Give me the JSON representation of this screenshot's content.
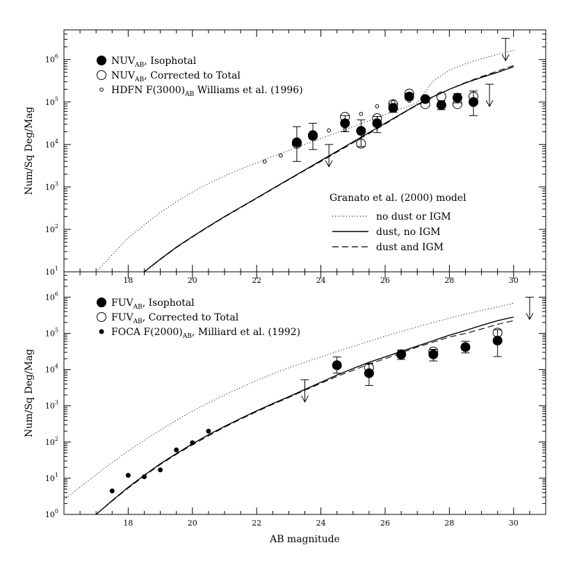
{
  "chart_data": {
    "type": "scatter",
    "xlabel": "AB magnitude",
    "ylabel": "Num/Sq Deg/Mag",
    "xlim": [
      16,
      31
    ],
    "x_ticks": [
      18,
      20,
      22,
      24,
      26,
      28,
      30
    ],
    "y_tick_labels": [
      "10^0",
      "10^1",
      "10^2",
      "10^3",
      "10^4",
      "10^5",
      "10^6"
    ],
    "panels": [
      {
        "id": "nuv",
        "ylim_log10": [
          1.0,
          6.7
        ],
        "legend": [
          {
            "symbol": "filled-circle",
            "base": "NUV",
            "sub": "AB",
            "text": ", Isophotal"
          },
          {
            "symbol": "open-circle",
            "base": "NUV",
            "sub": "AB",
            "text": ", Corrected to Total"
          },
          {
            "symbol": "small-open-circle",
            "base": "HDFN F(3000)",
            "sub": "AB",
            "text": " Williams et al. (1996)"
          }
        ],
        "model_legend_title": "Granato et al. (2000) model",
        "model_legend": [
          {
            "style": "dotted",
            "label": "no dust or IGM"
          },
          {
            "style": "solid",
            "label": "dust, no IGM"
          },
          {
            "style": "dashed",
            "label": "dust and IGM"
          }
        ],
        "models": {
          "dotted": {
            "x": [
              17.0,
              17.5,
              18.0,
              18.5,
              19.0,
              19.5,
              20.0,
              20.5,
              21.0,
              21.5,
              22.0,
              22.5,
              23.0,
              23.5,
              24.0,
              24.5,
              25.0,
              25.5,
              26.0,
              26.5,
              27.0,
              27.5,
              28.0,
              28.5,
              29.0,
              29.5,
              30.0
            ],
            "y_log10": [
              1.0,
              1.4,
              1.8,
              2.1,
              2.4,
              2.65,
              2.88,
              3.08,
              3.26,
              3.42,
              3.57,
              3.72,
              3.86,
              4.0,
              4.14,
              4.28,
              4.42,
              4.56,
              4.7,
              4.84,
              4.98,
              5.5,
              5.75,
              5.9,
              6.02,
              6.12,
              6.22
            ]
          },
          "solid": {
            "x": [
              18.5,
              19.0,
              19.5,
              20.0,
              20.5,
              21.0,
              21.5,
              22.0,
              22.5,
              23.0,
              23.5,
              24.0,
              24.5,
              25.0,
              25.5,
              26.0,
              26.5,
              27.0,
              27.5,
              28.0,
              28.5,
              29.0,
              29.5,
              30.0
            ],
            "y_log10": [
              1.0,
              1.3,
              1.58,
              1.83,
              2.07,
              2.3,
              2.52,
              2.74,
              2.96,
              3.18,
              3.4,
              3.62,
              3.84,
              4.06,
              4.28,
              4.5,
              4.72,
              4.94,
              5.13,
              5.3,
              5.45,
              5.58,
              5.7,
              5.83
            ]
          },
          "dashed": {
            "x": [
              18.5,
              19.0,
              19.5,
              20.0,
              20.5,
              21.0,
              21.5,
              22.0,
              22.5,
              23.0,
              23.5,
              24.0,
              24.5,
              25.0,
              25.5,
              26.0,
              26.5,
              27.0,
              27.5,
              28.0,
              28.5,
              29.0,
              29.5,
              30.0
            ],
            "y_log10": [
              1.0,
              1.29,
              1.57,
              1.82,
              2.06,
              2.29,
              2.51,
              2.73,
              2.95,
              3.17,
              3.39,
              3.6,
              3.82,
              4.04,
              4.26,
              4.48,
              4.71,
              4.93,
              5.12,
              5.3,
              5.46,
              5.6,
              5.73,
              5.86
            ]
          }
        },
        "isophotal": [
          {
            "x": 23.25,
            "y_log10": 4.05,
            "err_lo": 3.6,
            "err_hi": 4.42
          },
          {
            "x": 23.75,
            "y_log10": 4.22,
            "err_lo": 3.88,
            "err_hi": 4.5
          },
          {
            "x": 24.75,
            "y_log10": 4.5,
            "err_lo": 4.3,
            "err_hi": 4.68
          },
          {
            "x": 25.25,
            "y_log10": 4.32,
            "err_lo": 3.95,
            "err_hi": 4.58
          },
          {
            "x": 25.75,
            "y_log10": 4.5,
            "err_lo": 4.28,
            "err_hi": 4.66
          },
          {
            "x": 26.25,
            "y_log10": 4.86,
            "err_lo": 4.76,
            "err_hi": 4.96
          },
          {
            "x": 26.75,
            "y_log10": 5.13,
            "err_lo": 5.05,
            "err_hi": 5.2
          },
          {
            "x": 27.25,
            "y_log10": 5.07,
            "err_lo": 5.0,
            "err_hi": 5.14
          },
          {
            "x": 27.75,
            "y_log10": 4.93,
            "err_lo": 4.82,
            "err_hi": 5.03
          },
          {
            "x": 28.25,
            "y_log10": 5.1,
            "err_lo": 4.98,
            "err_hi": 5.2
          },
          {
            "x": 28.75,
            "y_log10": 5.0,
            "err_lo": 4.68,
            "err_hi": 5.26
          }
        ],
        "corrected": [
          {
            "x": 23.25,
            "y_log10": 4.02
          },
          {
            "x": 23.75,
            "y_log10": 4.2
          },
          {
            "x": 24.75,
            "y_log10": 4.65
          },
          {
            "x": 25.25,
            "y_log10": 4.02
          },
          {
            "x": 25.75,
            "y_log10": 4.62
          },
          {
            "x": 26.25,
            "y_log10": 4.95
          },
          {
            "x": 26.75,
            "y_log10": 5.2
          },
          {
            "x": 27.25,
            "y_log10": 4.95
          },
          {
            "x": 27.75,
            "y_log10": 5.13
          },
          {
            "x": 28.25,
            "y_log10": 4.95
          },
          {
            "x": 28.75,
            "y_log10": 5.13
          }
        ],
        "hdfn": [
          {
            "x": 22.25,
            "y_log10": 3.6
          },
          {
            "x": 22.75,
            "y_log10": 3.74
          },
          {
            "x": 23.25,
            "y_log10": 4.02
          },
          {
            "x": 23.75,
            "y_log10": 4.26
          },
          {
            "x": 24.25,
            "y_log10": 4.33
          },
          {
            "x": 24.75,
            "y_log10": 4.35
          },
          {
            "x": 25.25,
            "y_log10": 4.72
          },
          {
            "x": 25.75,
            "y_log10": 4.9
          },
          {
            "x": 26.25,
            "y_log10": 5.0
          },
          {
            "x": 26.75,
            "y_log10": 5.03
          },
          {
            "x": 27.25,
            "y_log10": 5.05
          }
        ],
        "upper_limits": [
          {
            "x": 24.25,
            "y_log10": 4.0
          },
          {
            "x": 29.25,
            "y_log10": 5.42
          },
          {
            "x": 29.75,
            "y_log10": 6.5
          }
        ]
      },
      {
        "id": "fuv",
        "ylim_log10": [
          0.0,
          6.7
        ],
        "legend": [
          {
            "symbol": "filled-circle",
            "base": "FUV",
            "sub": "AB",
            "text": ", Isophotal"
          },
          {
            "symbol": "open-circle",
            "base": "FUV",
            "sub": "AB",
            "text": ", Corrected to Total"
          },
          {
            "symbol": "small-filled-circle",
            "base": "FOCA F(2000)",
            "sub": "AB",
            "text": ", Milliard et al. (1992)"
          }
        ],
        "models": {
          "dotted": {
            "x": [
              16.0,
              16.5,
              17.0,
              17.5,
              18.0,
              18.5,
              19.0,
              19.5,
              20.0,
              20.5,
              21.0,
              21.5,
              22.0,
              22.5,
              23.0,
              23.5,
              24.0,
              24.5,
              25.0,
              25.5,
              26.0,
              26.5,
              27.0,
              27.5,
              28.0,
              28.5,
              29.0,
              29.5,
              30.0
            ],
            "y_log10": [
              0.4,
              0.75,
              1.1,
              1.43,
              1.75,
              2.05,
              2.33,
              2.6,
              2.85,
              3.08,
              3.3,
              3.5,
              3.7,
              3.88,
              4.05,
              4.2,
              4.35,
              4.5,
              4.64,
              4.78,
              4.92,
              5.05,
              5.18,
              5.3,
              5.42,
              5.53,
              5.63,
              5.73,
              5.83
            ]
          },
          "solid": {
            "x": [
              17.0,
              17.5,
              18.0,
              18.5,
              19.0,
              19.5,
              20.0,
              20.5,
              21.0,
              21.5,
              22.0,
              22.5,
              23.0,
              23.5,
              24.0,
              24.5,
              25.0,
              25.5,
              26.0,
              26.5,
              27.0,
              27.5,
              28.0,
              28.5,
              29.0,
              29.5,
              30.0
            ],
            "y_log10": [
              0.0,
              0.38,
              0.75,
              1.08,
              1.4,
              1.68,
              1.95,
              2.2,
              2.43,
              2.65,
              2.86,
              3.06,
              3.25,
              3.45,
              3.65,
              3.85,
              4.03,
              4.2,
              4.35,
              4.5,
              4.65,
              4.8,
              4.95,
              5.08,
              5.22,
              5.35,
              5.45
            ]
          },
          "dashed": {
            "x": [
              17.0,
              17.5,
              18.0,
              18.5,
              19.0,
              19.5,
              20.0,
              20.5,
              21.0,
              21.5,
              22.0,
              22.5,
              23.0,
              23.5,
              24.0,
              24.5,
              25.0,
              25.5,
              26.0,
              26.5,
              27.0,
              27.5,
              28.0,
              28.5,
              29.0,
              29.5,
              30.0
            ],
            "y_log10": [
              0.0,
              0.37,
              0.73,
              1.06,
              1.38,
              1.66,
              1.92,
              2.17,
              2.41,
              2.63,
              2.84,
              3.04,
              3.23,
              3.43,
              3.62,
              3.81,
              3.98,
              4.15,
              4.3,
              4.46,
              4.62,
              4.76,
              4.9,
              5.0,
              5.12,
              5.25,
              5.35
            ]
          }
        },
        "isophotal": [
          {
            "x": 24.5,
            "y_log10": 4.12,
            "err_lo": 3.9,
            "err_hi": 4.35
          },
          {
            "x": 25.5,
            "y_log10": 3.9,
            "err_lo": 3.56,
            "err_hi": 4.16
          },
          {
            "x": 26.5,
            "y_log10": 4.42,
            "err_lo": 4.28,
            "err_hi": 4.54
          },
          {
            "x": 27.5,
            "y_log10": 4.42,
            "err_lo": 4.24,
            "err_hi": 4.56
          },
          {
            "x": 28.5,
            "y_log10": 4.62,
            "err_lo": 4.46,
            "err_hi": 4.78
          },
          {
            "x": 29.5,
            "y_log10": 4.8,
            "err_lo": 4.36,
            "err_hi": 5.1
          }
        ],
        "corrected": [
          {
            "x": 25.5,
            "y_log10": 4.05
          },
          {
            "x": 26.5,
            "y_log10": 4.42
          },
          {
            "x": 27.5,
            "y_log10": 4.5
          },
          {
            "x": 29.5,
            "y_log10": 5.02
          }
        ],
        "foca": [
          {
            "x": 17.5,
            "y_log10": 0.65
          },
          {
            "x": 18.0,
            "y_log10": 1.08
          },
          {
            "x": 18.5,
            "y_log10": 1.04
          },
          {
            "x": 19.0,
            "y_log10": 1.23
          },
          {
            "x": 19.5,
            "y_log10": 1.78
          },
          {
            "x": 20.0,
            "y_log10": 1.98
          },
          {
            "x": 20.5,
            "y_log10": 2.3
          }
        ],
        "upper_limits": [
          {
            "x": 23.5,
            "y_log10": 3.72
          },
          {
            "x": 30.5,
            "y_log10": 6.0
          }
        ]
      }
    ]
  }
}
